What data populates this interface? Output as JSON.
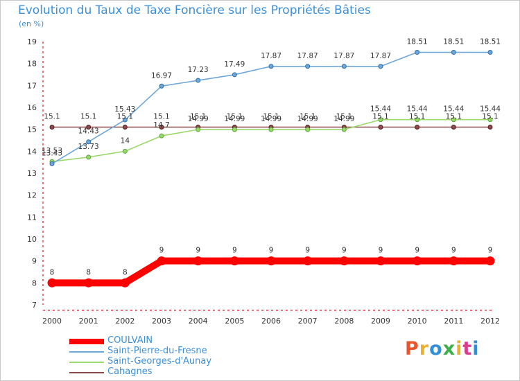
{
  "title": "Evolution du Taux de Taxe Foncière sur les Propriétés Bâties",
  "subtitle": "(en %)",
  "logo": {
    "text": "Proxiti",
    "colors": [
      "#e8542c",
      "#e9b12d",
      "#2f8fd8",
      "#3cae4a",
      "#e9b12d",
      "#d93c8e",
      "#2f8fd8"
    ]
  },
  "chart_data": {
    "type": "line",
    "x": [
      "2000",
      "2001",
      "2002",
      "2003",
      "2004",
      "2005",
      "2006",
      "2007",
      "2008",
      "2009",
      "2010",
      "2011",
      "2012"
    ],
    "ylim": [
      7,
      19
    ],
    "yticks": [
      "7",
      "8",
      "9",
      "10",
      "11",
      "12",
      "13",
      "14",
      "15",
      "16",
      "17",
      "18",
      "19"
    ],
    "grid": false,
    "legend_position": "bottom-left",
    "series": [
      {
        "name": "COULVAIN",
        "color": "#ff0000",
        "values": [
          8,
          8,
          8,
          9,
          9,
          9,
          9,
          9,
          9,
          9,
          9,
          9,
          9
        ],
        "labels": [
          "8",
          "8",
          "8",
          "9",
          "9",
          "9",
          "9",
          "9",
          "9",
          "9",
          "9",
          "9",
          "9"
        ]
      },
      {
        "name": "Saint-Pierre-du-Fresne",
        "color": "#6ea6d8",
        "values": [
          13.43,
          14.43,
          15.43,
          16.97,
          17.23,
          17.49,
          17.87,
          17.87,
          17.87,
          17.87,
          18.51,
          18.51,
          18.51
        ],
        "labels": [
          "13.43",
          "14.43",
          "15.43",
          "16.97",
          "17.23",
          "17.49",
          "17.87",
          "17.87",
          "17.87",
          "17.87",
          "18.51",
          "18.51",
          "18.51"
        ]
      },
      {
        "name": "Saint-Georges-d'Aunay",
        "color": "#9ad868",
        "values": [
          13.53,
          13.73,
          14,
          14.7,
          14.99,
          14.99,
          14.99,
          14.99,
          14.99,
          15.44,
          15.44,
          15.44,
          15.44
        ],
        "labels": [
          "13.53",
          "13.73",
          "14",
          "14.7",
          "14.99",
          "14.99",
          "14.99",
          "14.99",
          "14.99",
          "15.44",
          "15.44",
          "15.44",
          "15.44"
        ]
      },
      {
        "name": "Cahagnes",
        "color": "#8b4a4a",
        "values": [
          15.1,
          15.1,
          15.1,
          15.1,
          15.1,
          15.1,
          15.1,
          15.1,
          15.1,
          15.1,
          15.1,
          15.1,
          15.1
        ],
        "labels": [
          "15.1",
          "15.1",
          "15.1",
          "15.1",
          "15.1",
          "15.1",
          "15.1",
          "15.1",
          "15.1",
          "15.1",
          "15.1",
          "15.1",
          "15.1"
        ]
      }
    ]
  }
}
